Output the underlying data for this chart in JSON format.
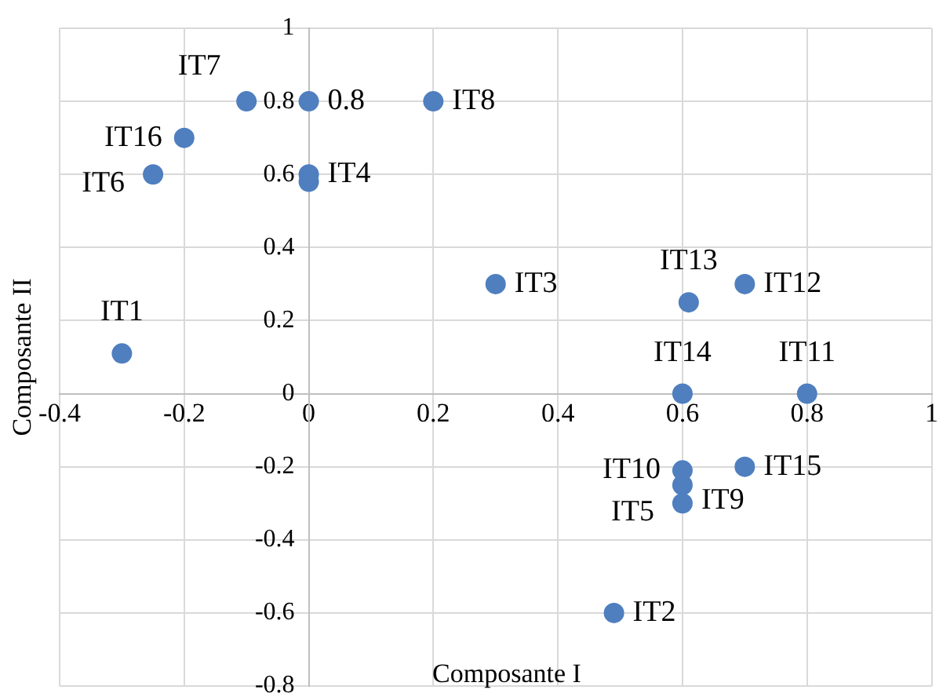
{
  "chart_data": {
    "type": "scatter",
    "xlabel": "Composante I",
    "ylabel": "Composante II",
    "grid": true,
    "marker": "circle",
    "legend": false,
    "xlim": [
      -0.4,
      1
    ],
    "xticks": [
      -0.4,
      -0.2,
      0,
      0.2,
      0.4,
      0.6,
      0.8,
      1
    ],
    "ylim": [
      -0.8,
      1
    ],
    "yticks": [
      -0.8,
      -0.6,
      -0.4,
      -0.2,
      0,
      0.2,
      0.4,
      0.6,
      0.8,
      1
    ],
    "series": [
      {
        "color": "#4f7fbf",
        "x": [
          -0.1,
          0,
          0.2,
          -0.2,
          -0.25,
          0,
          0,
          0.3,
          0.61,
          0.7,
          -0.3,
          0.6,
          0.8,
          0.6,
          0.6,
          0.6,
          0.7,
          0.49
        ],
        "values": [
          0.8,
          0.8,
          0.8,
          0.7,
          0.6,
          0.6,
          0.58,
          0.3,
          0.25,
          0.3,
          0.11,
          0,
          0,
          -0.21,
          -0.25,
          -0.3,
          -0.2,
          -0.6
        ],
        "value_labels": [
          "IT7",
          "0.8",
          "IT8",
          "IT16",
          "IT6",
          "IT4",
          null,
          "IT3",
          "IT13",
          "IT12",
          "IT1",
          "IT14",
          "IT11",
          "IT10",
          "IT9",
          "IT5",
          "IT15",
          "IT2"
        ]
      }
    ]
  }
}
